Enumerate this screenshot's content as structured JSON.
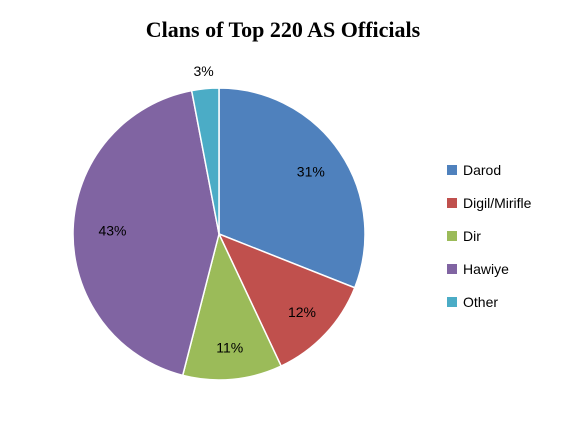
{
  "chart_data": {
    "type": "pie",
    "title": "Clans of Top 220 AS Officials",
    "legend_position": "right",
    "start_angle_deg": 90,
    "direction": "clockwise",
    "slices": [
      {
        "label": "Darod",
        "value": 31,
        "display": "31%",
        "color": "#4F81BD"
      },
      {
        "label": "Digil/Mirifle",
        "value": 12,
        "display": "12%",
        "color": "#C0504D"
      },
      {
        "label": "Dir",
        "value": 11,
        "display": "11%",
        "color": "#9BBB59"
      },
      {
        "label": "Hawiye",
        "value": 43,
        "display": "43%",
        "color": "#8064A2"
      },
      {
        "label": "Other",
        "value": 3,
        "display": "3%",
        "color": "#4BACC6"
      }
    ]
  }
}
